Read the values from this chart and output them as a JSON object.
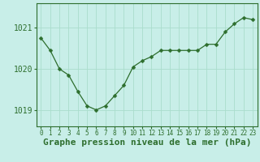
{
  "x": [
    0,
    1,
    2,
    3,
    4,
    5,
    6,
    7,
    8,
    9,
    10,
    11,
    12,
    13,
    14,
    15,
    16,
    17,
    18,
    19,
    20,
    21,
    22,
    23
  ],
  "y": [
    1020.75,
    1020.45,
    1020.0,
    1019.85,
    1019.45,
    1019.1,
    1019.0,
    1019.1,
    1019.35,
    1019.6,
    1020.05,
    1020.2,
    1020.3,
    1020.45,
    1020.45,
    1020.45,
    1020.45,
    1020.45,
    1020.6,
    1020.6,
    1020.9,
    1021.1,
    1021.25,
    1021.2
  ],
  "line_color": "#2d6e2d",
  "marker": "D",
  "marker_size": 2.5,
  "bg_color": "#caf0e0",
  "grid_color": "#aaddcc",
  "xlabel": "Graphe pression niveau de la mer (hPa)",
  "ylim": [
    1018.6,
    1021.6
  ],
  "yticks": [
    1019,
    1020,
    1021
  ],
  "xlim": [
    -0.5,
    23.5
  ],
  "xlabel_fontsize": 8,
  "ytick_fontsize": 7,
  "xtick_fontsize": 5.5,
  "axis_color": "#2d6e2d",
  "spine_color": "#4d8c4d"
}
